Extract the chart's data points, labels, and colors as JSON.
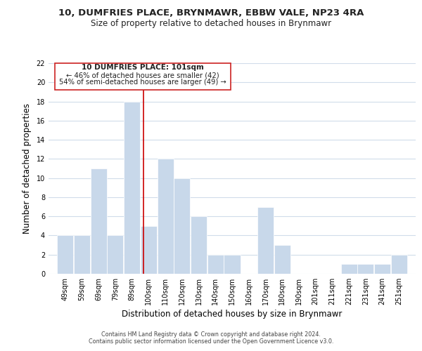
{
  "title": "10, DUMFRIES PLACE, BRYNMAWR, EBBW VALE, NP23 4RA",
  "subtitle": "Size of property relative to detached houses in Brynmawr",
  "xlabel": "Distribution of detached houses by size in Brynmawr",
  "ylabel": "Number of detached properties",
  "bar_color": "#c8d8ea",
  "grid_color": "#d0dcea",
  "marker_line_color": "#cc0000",
  "marker_value": 101,
  "bins_left": [
    49,
    59,
    69,
    79,
    89,
    99,
    109,
    119,
    129,
    139,
    149,
    159,
    169,
    179,
    189,
    199,
    209,
    219,
    229,
    239,
    249
  ],
  "counts": [
    4,
    4,
    11,
    4,
    18,
    5,
    12,
    10,
    6,
    2,
    2,
    0,
    7,
    3,
    0,
    0,
    0,
    1,
    1,
    1,
    2
  ],
  "tick_labels": [
    "49sqm",
    "59sqm",
    "69sqm",
    "79sqm",
    "89sqm",
    "100sqm",
    "110sqm",
    "120sqm",
    "130sqm",
    "140sqm",
    "150sqm",
    "160sqm",
    "170sqm",
    "180sqm",
    "190sqm",
    "201sqm",
    "211sqm",
    "221sqm",
    "231sqm",
    "241sqm",
    "251sqm"
  ],
  "ylim": [
    0,
    22
  ],
  "xlim_left": 44,
  "xlim_right": 264,
  "annotation_title": "10 DUMFRIES PLACE: 101sqm",
  "annotation_line1": "← 46% of detached houses are smaller (42)",
  "annotation_line2": "54% of semi-detached houses are larger (49) →",
  "footer1": "Contains HM Land Registry data © Crown copyright and database right 2024.",
  "footer2": "Contains public sector information licensed under the Open Government Licence v3.0.",
  "title_fontsize": 9.5,
  "subtitle_fontsize": 8.5,
  "axis_label_fontsize": 8.5,
  "tick_fontsize": 7,
  "annotation_fontsize": 7.5,
  "footer_fontsize": 5.8
}
